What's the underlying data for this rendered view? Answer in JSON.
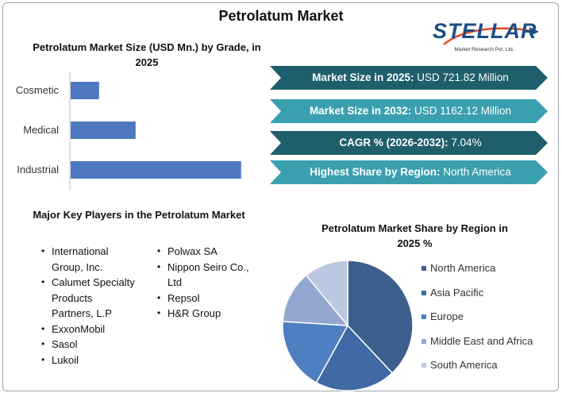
{
  "title": "Petrolatum Market",
  "logo": {
    "name": "STELLAR",
    "tagline": "Market Research Pvt. Ltd."
  },
  "bar_chart_title": "Petrolatum Market Size (USD Mn.) by Grade, in 2025",
  "banners": [
    {
      "label": "Market Size in 2025:",
      "value": "USD 721.82 Million",
      "color": "#1f5f6b"
    },
    {
      "label": "Market Size in 2032:",
      "value": "USD 1162.12 Million",
      "color": "#3aa0b0"
    },
    {
      "label": "CAGR % (2026-2032):",
      "value": "7.04%",
      "color": "#1f5f6b"
    },
    {
      "label": "Highest Share by Region:",
      "value": "North America",
      "color": "#3aa0b0"
    }
  ],
  "players_title": "Major Key Players in the Petrolatum Market",
  "players_left": [
    "International Group, Inc.",
    "Calumet Specialty Products Partners, L.P",
    "ExxonMobil",
    "Sasol",
    "Lukoil"
  ],
  "players_right": [
    "Polwax SA",
    "Nippon Seiro Co., Ltd",
    "Repsol",
    "H&R Group"
  ],
  "pie_title": "Petrolatum Market Share by Region in 2025 %",
  "colors": {
    "bar": "#4e79c0",
    "title_text": "#111111"
  },
  "chart_data": [
    {
      "type": "bar",
      "orientation": "horizontal",
      "title": "Petrolatum Market Size (USD Mn.) by Grade, in 2025",
      "categories": [
        "Cosmetic",
        "Medical",
        "Industrial"
      ],
      "values": [
        35,
        80,
        210
      ],
      "xlim": [
        0,
        220
      ],
      "grid": false
    },
    {
      "type": "pie",
      "title": "Petrolatum Market Share by Region in 2025 %",
      "categories": [
        "North America",
        "Asia Pacific",
        "Europe",
        "Middle East and Africa",
        "South America"
      ],
      "values": [
        38,
        20,
        18,
        13,
        11
      ],
      "colors": [
        "#3d5f8e",
        "#3f6aa5",
        "#4f7fc0",
        "#93a7d0",
        "#bcc8e2"
      ],
      "legend": "right"
    }
  ]
}
